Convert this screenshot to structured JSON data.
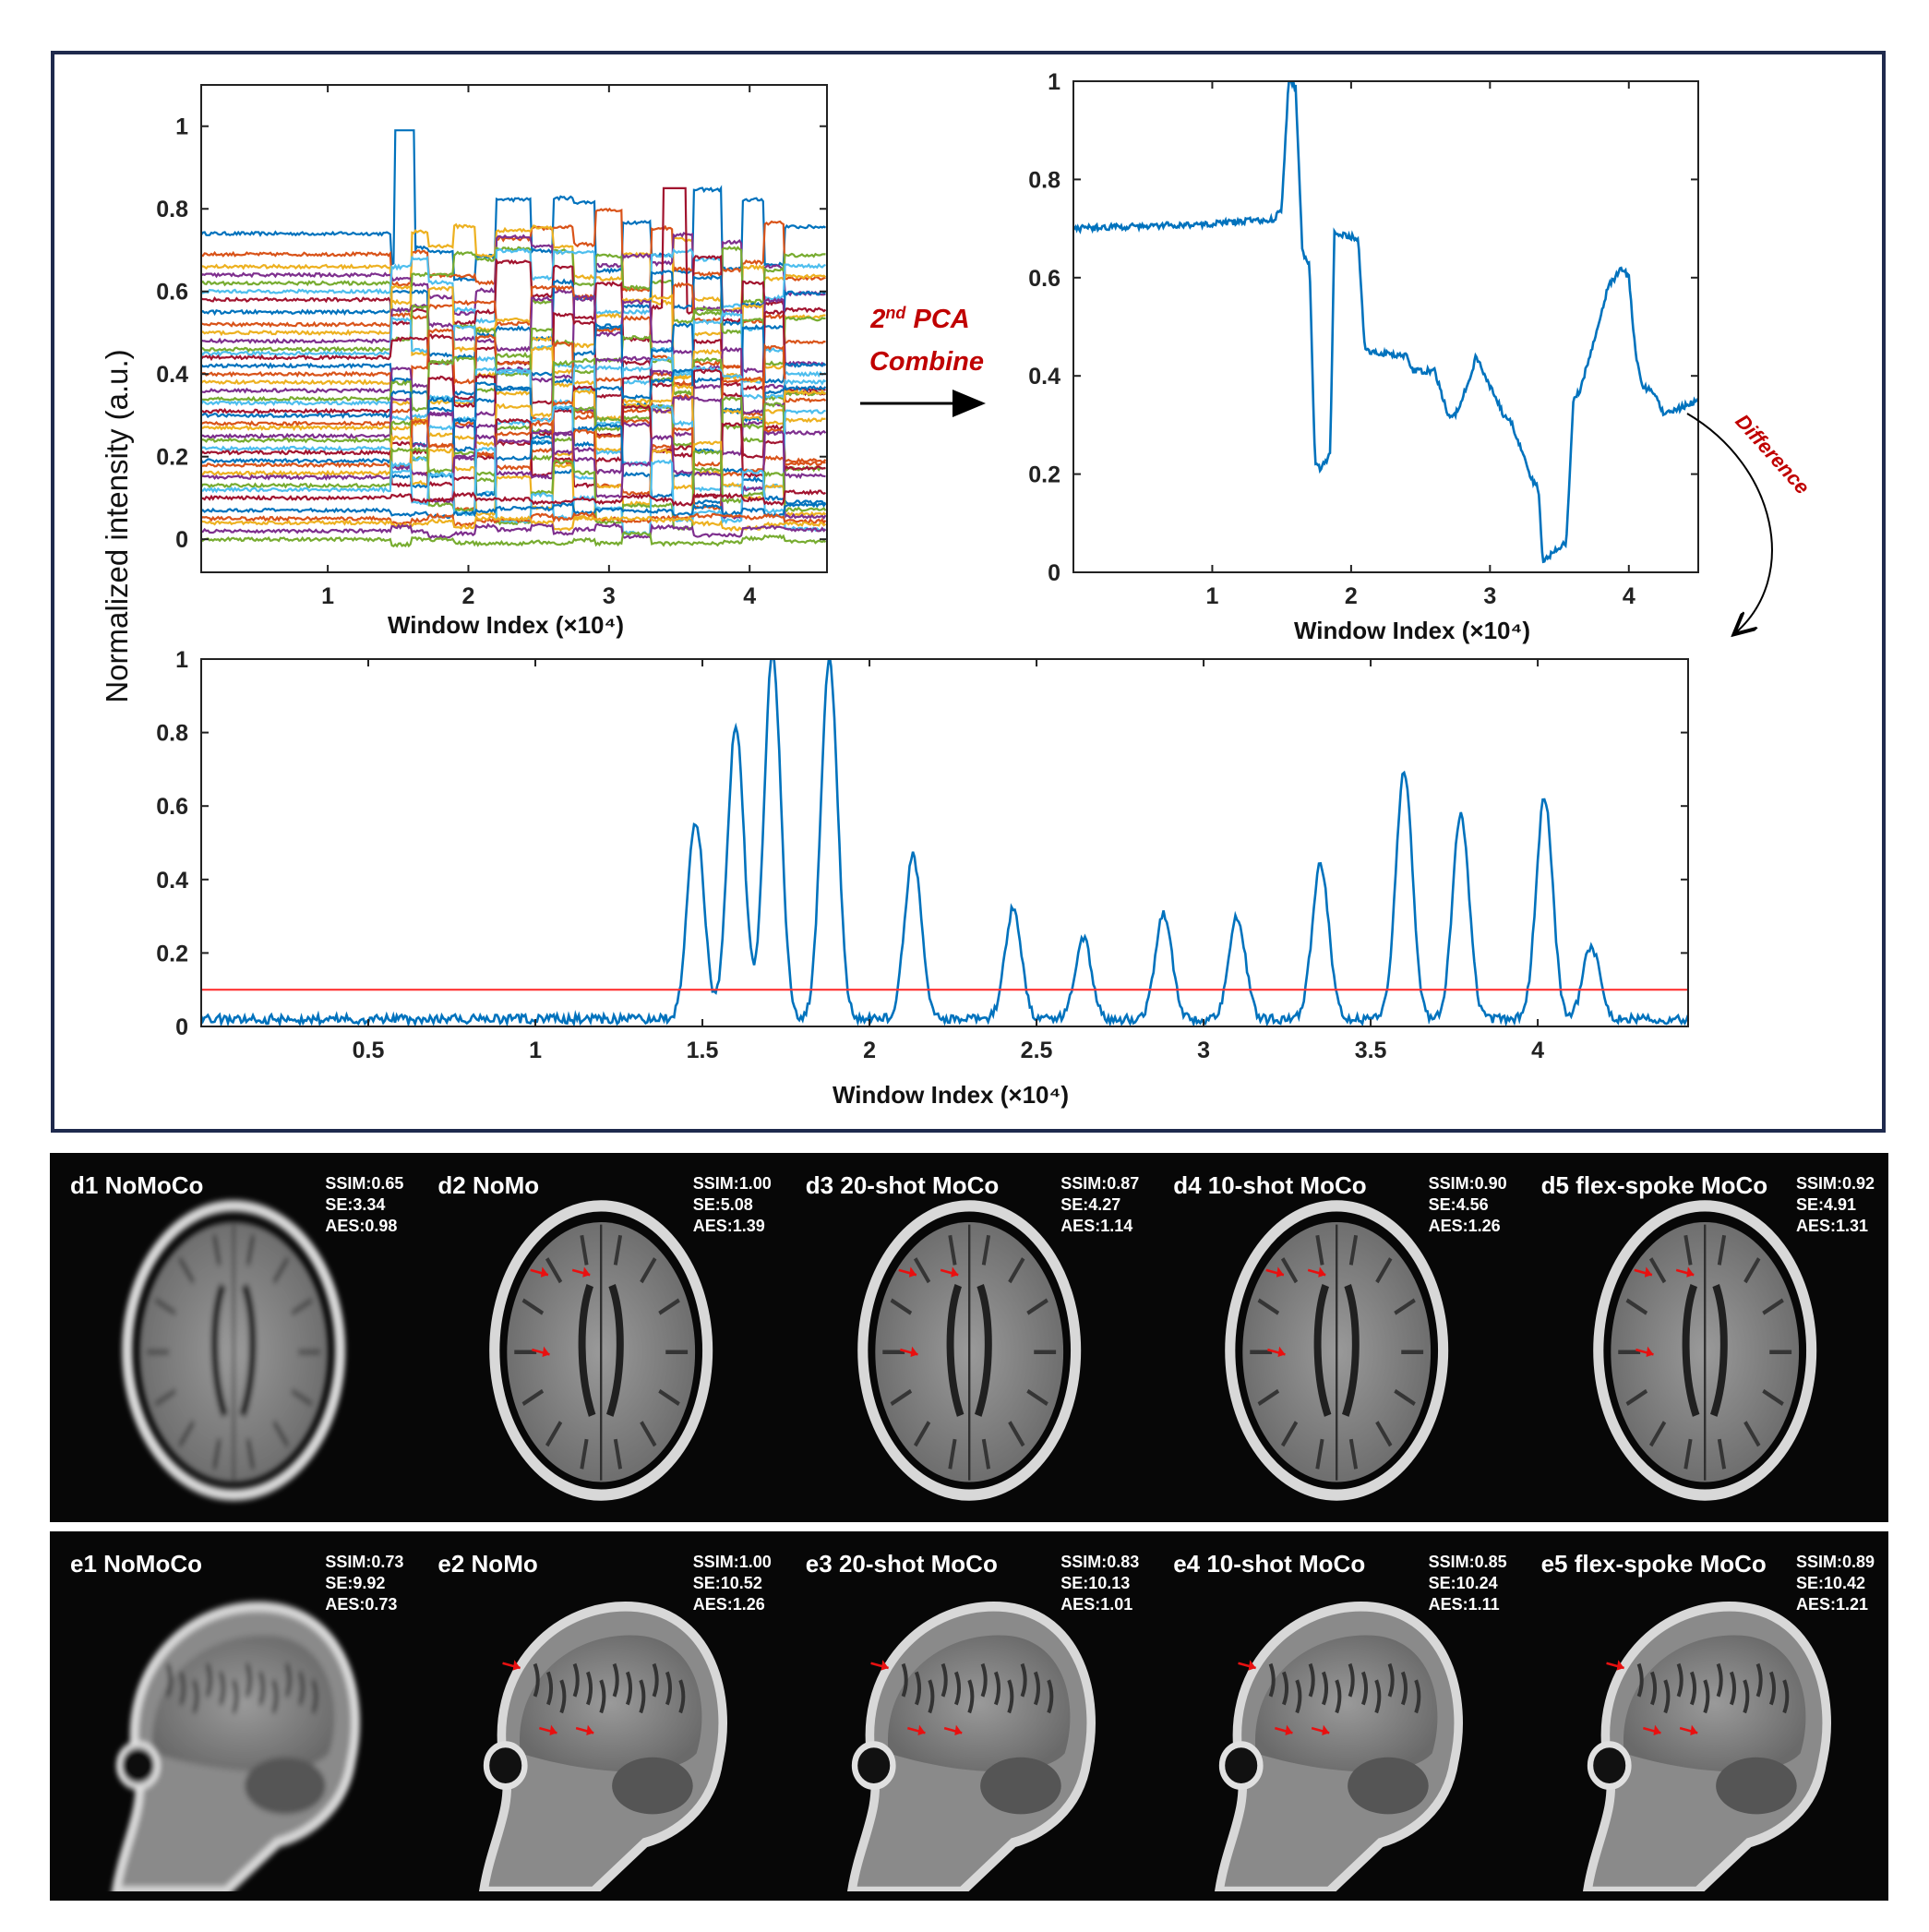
{
  "chart_data": [
    {
      "id": "pca_components",
      "type": "line",
      "x_ticks": [
        "1",
        "2",
        "3",
        "4"
      ],
      "y_ticks": [
        "0",
        "0.2",
        "0.4",
        "0.6",
        "0.8",
        "1"
      ],
      "xlabel": "Window Index (×10⁴)",
      "xlim": [
        0.1,
        4.55
      ],
      "ylim": [
        -0.08,
        1.1
      ],
      "grid": false,
      "series_count": 40,
      "series_base_levels": [
        0.74,
        0.69,
        0.66,
        0.64,
        0.62,
        0.6,
        0.58,
        0.55,
        0.52,
        0.5,
        0.48,
        0.46,
        0.45,
        0.44,
        0.42,
        0.4,
        0.38,
        0.36,
        0.34,
        0.33,
        0.31,
        0.3,
        0.28,
        0.27,
        0.25,
        0.24,
        0.22,
        0.21,
        0.19,
        0.18,
        0.16,
        0.15,
        0.13,
        0.12,
        0.1,
        0.07,
        0.05,
        0.04,
        0.02,
        0.0
      ],
      "colors": [
        "#0072BD",
        "#D95319",
        "#EDB120",
        "#7E2F8E",
        "#77AC30",
        "#4DBEEE",
        "#A2142F"
      ]
    },
    {
      "id": "pca_combined",
      "type": "line",
      "x_ticks": [
        "1",
        "2",
        "3",
        "4"
      ],
      "y_ticks": [
        "0",
        "0.2",
        "0.4",
        "0.6",
        "0.8",
        "1"
      ],
      "xlabel": "Window Index (×10⁴)",
      "xlim": [
        0.0,
        4.5
      ],
      "ylim": [
        0,
        1
      ],
      "grid": false,
      "color": "#0072BD",
      "x": [
        0,
        1.0,
        1.45,
        1.5,
        1.55,
        1.6,
        1.65,
        1.7,
        1.74,
        1.78,
        1.85,
        1.88,
        2.05,
        2.1,
        2.4,
        2.45,
        2.6,
        2.7,
        2.75,
        2.85,
        2.9,
        3.1,
        3.15,
        3.3,
        3.35,
        3.38,
        3.45,
        3.55,
        3.6,
        3.65,
        3.85,
        3.95,
        4.0,
        4.05,
        4.1,
        4.2,
        4.25,
        4.5
      ],
      "y": [
        0.7,
        0.71,
        0.72,
        0.74,
        1.0,
        0.99,
        0.65,
        0.63,
        0.22,
        0.21,
        0.24,
        0.69,
        0.68,
        0.45,
        0.44,
        0.41,
        0.41,
        0.32,
        0.32,
        0.39,
        0.44,
        0.32,
        0.31,
        0.19,
        0.17,
        0.02,
        0.04,
        0.06,
        0.35,
        0.37,
        0.58,
        0.62,
        0.6,
        0.44,
        0.38,
        0.36,
        0.32,
        0.35
      ],
      "annotation": "Difference"
    },
    {
      "id": "difference",
      "type": "line",
      "x_ticks": [
        "0.5",
        "1",
        "1.5",
        "2",
        "2.5",
        "3",
        "3.5",
        "4"
      ],
      "y_ticks": [
        "0",
        "0.2",
        "0.4",
        "0.6",
        "0.8",
        "1"
      ],
      "xlabel": "Window Index (×10⁴)",
      "xlim": [
        0.0,
        4.45
      ],
      "ylim": [
        0,
        1
      ],
      "grid": false,
      "color": "#0072BD",
      "baseline": 0.02,
      "peaks": [
        {
          "x": 1.48,
          "y": 0.54
        },
        {
          "x": 1.6,
          "y": 0.8
        },
        {
          "x": 1.71,
          "y": 1.0
        },
        {
          "x": 1.88,
          "y": 0.98
        },
        {
          "x": 2.13,
          "y": 0.45
        },
        {
          "x": 2.43,
          "y": 0.3
        },
        {
          "x": 2.64,
          "y": 0.22
        },
        {
          "x": 2.88,
          "y": 0.29
        },
        {
          "x": 3.1,
          "y": 0.28
        },
        {
          "x": 3.35,
          "y": 0.42
        },
        {
          "x": 3.6,
          "y": 0.68
        },
        {
          "x": 3.77,
          "y": 0.56
        },
        {
          "x": 4.02,
          "y": 0.6
        },
        {
          "x": 4.16,
          "y": 0.2
        }
      ],
      "threshold": {
        "y": 0.1,
        "color": "#FF3333"
      }
    }
  ],
  "shared": {
    "ylabel": "Normalized intensity (a.u.)",
    "arrow_label_main": "2",
    "arrow_label_sup": "nd",
    "arrow_label_rest": " PCA",
    "arrow_label_line2": "Combine",
    "arrow_label_color": "#C00000"
  },
  "mri_rows": [
    {
      "row": "d",
      "view": "axial",
      "panels": [
        {
          "label": "d1 NoMoCo",
          "ssim": "SSIM:0.65",
          "se": "SE:3.34",
          "aes": "AES:0.98",
          "blur": true,
          "arrows": false
        },
        {
          "label": "d2  NoMo",
          "ssim": "SSIM:1.00",
          "se": "SE:5.08",
          "aes": "AES:1.39",
          "blur": false,
          "arrows": true
        },
        {
          "label": "d3  20-shot MoCo",
          "ssim": "SSIM:0.87",
          "se": "SE:4.27",
          "aes": "AES:1.14",
          "blur": false,
          "arrows": true
        },
        {
          "label": "d4  10-shot MoCo",
          "ssim": "SSIM:0.90",
          "se": "SE:4.56",
          "aes": "AES:1.26",
          "blur": false,
          "arrows": true
        },
        {
          "label": "d5  flex-spoke MoCo",
          "ssim": "SSIM:0.92",
          "se": "SE:4.91",
          "aes": "AES:1.31",
          "blur": false,
          "arrows": true
        }
      ]
    },
    {
      "row": "e",
      "view": "sagittal",
      "panels": [
        {
          "label": "e1   NoMoCo",
          "ssim": "SSIM:0.73",
          "se": "SE:9.92",
          "aes": "AES:0.73",
          "blur": true,
          "arrows": false
        },
        {
          "label": "e2    NoMo",
          "ssim": "SSIM:1.00",
          "se": "SE:10.52",
          "aes": "AES:1.26",
          "blur": false,
          "arrows": true
        },
        {
          "label": "e3  20-shot MoCo",
          "ssim": "SSIM:0.83",
          "se": "SE:10.13",
          "aes": "AES:1.01",
          "blur": false,
          "arrows": true
        },
        {
          "label": "e4   10-shot MoCo",
          "ssim": "SSIM:0.85",
          "se": "SE:10.24",
          "aes": "AES:1.11",
          "blur": false,
          "arrows": true
        },
        {
          "label": "e5  flex-spoke MoCo",
          "ssim": "SSIM:0.89",
          "se": "SE:10.42",
          "aes": "AES:1.21",
          "blur": false,
          "arrows": true
        }
      ]
    }
  ]
}
